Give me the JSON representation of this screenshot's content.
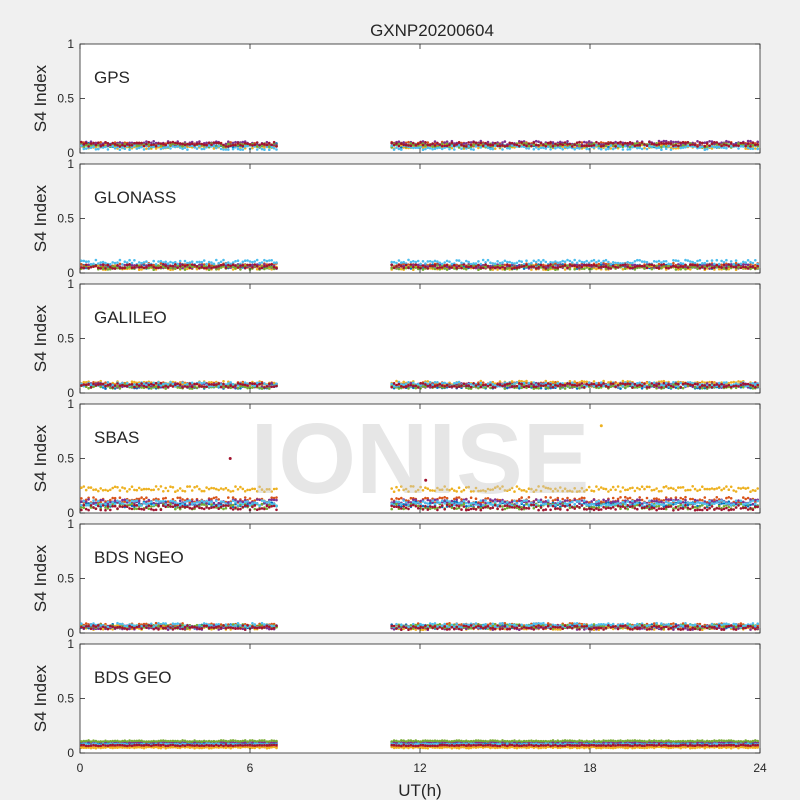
{
  "figure": {
    "title": "GXNP20200604",
    "xlabel": "UT(h)",
    "watermark": "IONISE"
  },
  "chart_data": {
    "type": "scatter",
    "shared_x": {
      "label": "UT(h)",
      "xlim": [
        0,
        24
      ],
      "ticks": [
        0,
        6,
        12,
        18,
        24
      ],
      "data_gap": [
        7,
        11
      ]
    },
    "series_colors": [
      "#0072BD",
      "#D95319",
      "#EDB120",
      "#7E2F8E",
      "#77AC30",
      "#4DBEEE",
      "#A2142F"
    ],
    "panels": [
      {
        "system": "GPS",
        "ylabel": "S4 Index",
        "ylim": [
          0,
          1
        ],
        "yticks": [
          0,
          0.5,
          1
        ],
        "series_levels": [
          0.07,
          0.08,
          0.06,
          0.09,
          0.07,
          0.05,
          0.08
        ],
        "noise": 0.02,
        "outliers": []
      },
      {
        "system": "GLONASS",
        "ylabel": "S4 Index",
        "ylim": [
          0,
          1
        ],
        "yticks": [
          0,
          0.5,
          1
        ],
        "series_levels": [
          0.06,
          0.07,
          0.05,
          0.06,
          0.05,
          0.1,
          0.06
        ],
        "noise": 0.02,
        "outliers": []
      },
      {
        "system": "GALILEO",
        "ylabel": "S4 Index",
        "ylim": [
          0,
          1
        ],
        "yticks": [
          0,
          0.5,
          1
        ],
        "series_levels": [
          0.06,
          0.08,
          0.09,
          0.07,
          0.06,
          0.08,
          0.07
        ],
        "noise": 0.02,
        "outliers": []
      },
      {
        "system": "SBAS",
        "ylabel": "S4 Index",
        "ylim": [
          0,
          1
        ],
        "yticks": [
          0,
          0.5,
          1
        ],
        "series_levels": [
          0.08,
          0.12,
          0.22,
          0.1,
          0.06,
          0.09,
          0.05
        ],
        "noise": 0.025,
        "outliers": [
          {
            "x": 5.3,
            "y": 0.5
          },
          {
            "x": 12.2,
            "y": 0.3
          },
          {
            "x": 18.4,
            "y": 0.8
          }
        ]
      },
      {
        "system": "BDS NGEO",
        "ylabel": "S4 Index",
        "ylim": [
          0,
          1
        ],
        "yticks": [
          0,
          0.5,
          1
        ],
        "series_levels": [
          0.06,
          0.07,
          0.05,
          0.05,
          0.06,
          0.07,
          0.05
        ],
        "noise": 0.02,
        "outliers": []
      },
      {
        "system": "BDS GEO",
        "ylabel": "S4 Index",
        "ylim": [
          0,
          1
        ],
        "yticks": [
          0,
          0.5,
          1
        ],
        "series_levels": [
          0.09,
          0.06,
          0.05,
          0.1,
          0.11,
          0.08,
          0.07
        ],
        "noise": 0.006,
        "outliers": []
      }
    ]
  }
}
